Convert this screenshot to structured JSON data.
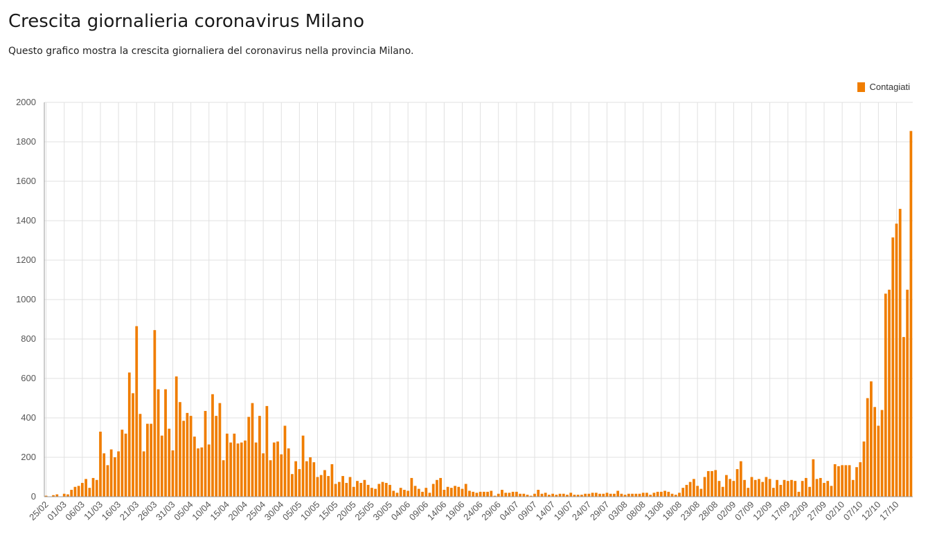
{
  "header": {
    "title": "Crescita giornalieria coronavirus Milano",
    "subtitle": "Questo grafico mostra la crescita giornaliera del coronavirus nella provincia Milano."
  },
  "colors": {
    "bar": "#f07d00",
    "grid": "#e0e0e0",
    "axis": "#999999"
  },
  "chart_data": {
    "type": "bar",
    "title": "Crescita giornalieria coronavirus Milano",
    "subtitle": "Questo grafico mostra la crescita giornaliera del coronavirus nella provincia Milano.",
    "xlabel": "",
    "ylabel": "",
    "ylim": [
      0,
      2000
    ],
    "y_ticks": [
      0,
      200,
      400,
      600,
      800,
      1000,
      1200,
      1400,
      1600,
      1800,
      2000
    ],
    "grid": true,
    "legend": "top-right",
    "start_date": "25/02",
    "x_tick_labels": [
      "25/02",
      "01/03",
      "06/03",
      "11/03",
      "16/03",
      "21/03",
      "26/03",
      "31/03",
      "05/04",
      "10/04",
      "15/04",
      "20/04",
      "25/04",
      "30/04",
      "05/05",
      "10/05",
      "15/05",
      "20/05",
      "25/05",
      "30/05",
      "04/06",
      "09/06",
      "14/06",
      "19/06",
      "24/06",
      "29/06",
      "04/07",
      "09/07",
      "14/07",
      "19/07",
      "24/07",
      "29/07",
      "03/08",
      "08/08",
      "13/08",
      "18/08",
      "23/08",
      "28/08",
      "02/09",
      "07/09",
      "12/09",
      "17/09",
      "22/09",
      "27/09",
      "02/10",
      "07/10",
      "12/10",
      "17/10"
    ],
    "series": [
      {
        "name": "Contagiati",
        "color": "#f07d00",
        "values": [
          5,
          0,
          8,
          12,
          0,
          15,
          12,
          35,
          50,
          55,
          70,
          90,
          45,
          95,
          85,
          330,
          220,
          160,
          240,
          200,
          230,
          340,
          320,
          630,
          525,
          865,
          420,
          230,
          370,
          370,
          845,
          545,
          310,
          545,
          345,
          235,
          610,
          480,
          385,
          425,
          410,
          305,
          245,
          250,
          435,
          265,
          520,
          410,
          475,
          185,
          320,
          275,
          320,
          270,
          275,
          285,
          405,
          475,
          275,
          410,
          220,
          460,
          185,
          275,
          280,
          215,
          360,
          245,
          115,
          180,
          140,
          310,
          180,
          200,
          175,
          100,
          110,
          135,
          105,
          165,
          65,
          75,
          105,
          70,
          100,
          50,
          80,
          70,
          85,
          60,
          45,
          40,
          65,
          75,
          70,
          60,
          30,
          20,
          45,
          35,
          30,
          95,
          55,
          40,
          25,
          45,
          20,
          65,
          85,
          95,
          35,
          50,
          45,
          55,
          50,
          40,
          65,
          30,
          25,
          20,
          25,
          25,
          25,
          30,
          5,
          15,
          35,
          20,
          20,
          25,
          25,
          15,
          15,
          10,
          5,
          15,
          35,
          15,
          20,
          10,
          15,
          10,
          15,
          15,
          10,
          20,
          10,
          10,
          10,
          15,
          15,
          20,
          20,
          15,
          15,
          20,
          15,
          15,
          30,
          15,
          10,
          15,
          15,
          15,
          15,
          20,
          20,
          10,
          20,
          25,
          25,
          30,
          25,
          15,
          10,
          20,
          45,
          60,
          75,
          90,
          55,
          40,
          100,
          130,
          130,
          135,
          80,
          50,
          110,
          90,
          80,
          140,
          180,
          85,
          45,
          100,
          85,
          90,
          75,
          100,
          90,
          45,
          85,
          60,
          85,
          80,
          85,
          80,
          25,
          80,
          95,
          50,
          190,
          90,
          95,
          70,
          80,
          55,
          165,
          155,
          160,
          160,
          160,
          85,
          150,
          175,
          280,
          500,
          585,
          455,
          360,
          440,
          1030,
          1050,
          1315,
          1385,
          1460,
          810,
          1050,
          1855
        ]
      }
    ]
  }
}
